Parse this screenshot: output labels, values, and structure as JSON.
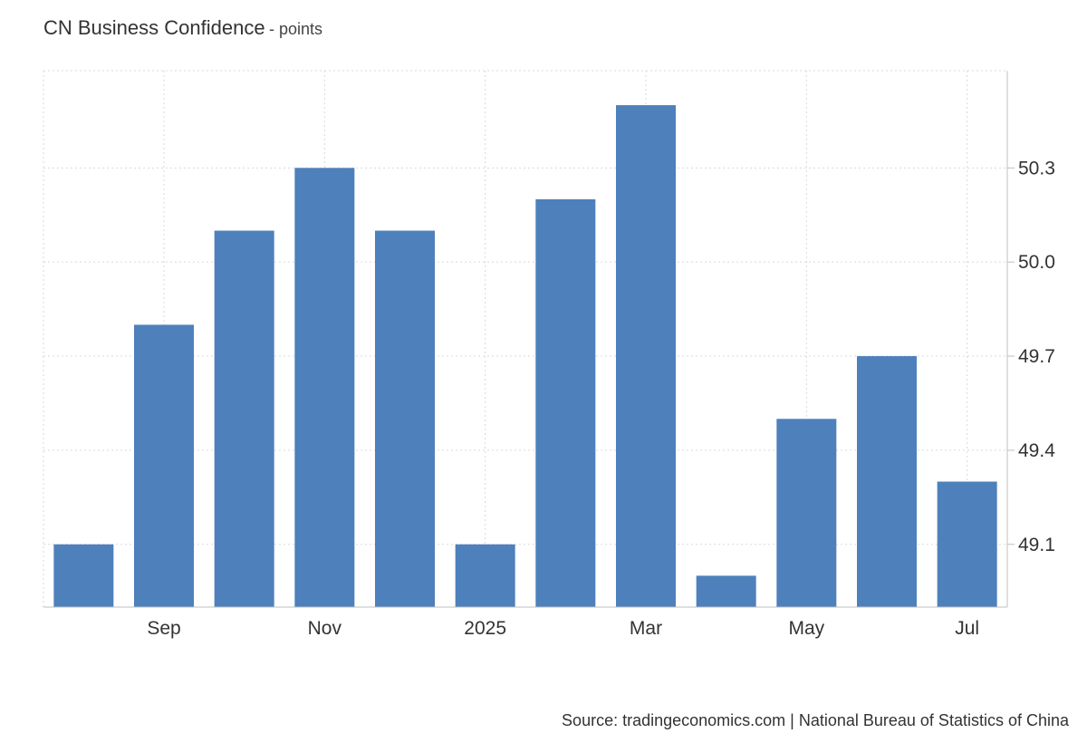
{
  "header": {
    "title": "CN Business Confidence",
    "subtitle": "- points"
  },
  "footer": {
    "source": "Source: tradingeconomics.com | National Bureau of Statistics of China"
  },
  "colors": {
    "bar": "#4e80bb",
    "grid": "#d9d9d9",
    "axis": "#bfbfbf",
    "text": "#333333"
  },
  "chart_data": {
    "type": "bar",
    "categories": [
      "2024-08",
      "2024-09",
      "2024-10",
      "2024-11",
      "2024-12",
      "2025-01",
      "2025-02",
      "2025-03",
      "2025-04",
      "2025-05",
      "2025-06",
      "2025-07"
    ],
    "values": [
      49.1,
      49.8,
      50.1,
      50.3,
      50.1,
      49.1,
      50.2,
      50.5,
      49.0,
      49.5,
      49.7,
      49.3
    ],
    "x_tick_labels": [
      {
        "category": "2024-09",
        "label": "Sep"
      },
      {
        "category": "2024-11",
        "label": "Nov"
      },
      {
        "category": "2025-01",
        "label": "2025"
      },
      {
        "category": "2025-03",
        "label": "Mar"
      },
      {
        "category": "2025-05",
        "label": "May"
      },
      {
        "category": "2025-07",
        "label": "Jul"
      }
    ],
    "y_ticks": [
      "49.1",
      "49.4",
      "49.7",
      "50.0",
      "50.3"
    ],
    "ylim": [
      48.9,
      50.61
    ],
    "y_axis_side": "right",
    "grid": true
  }
}
